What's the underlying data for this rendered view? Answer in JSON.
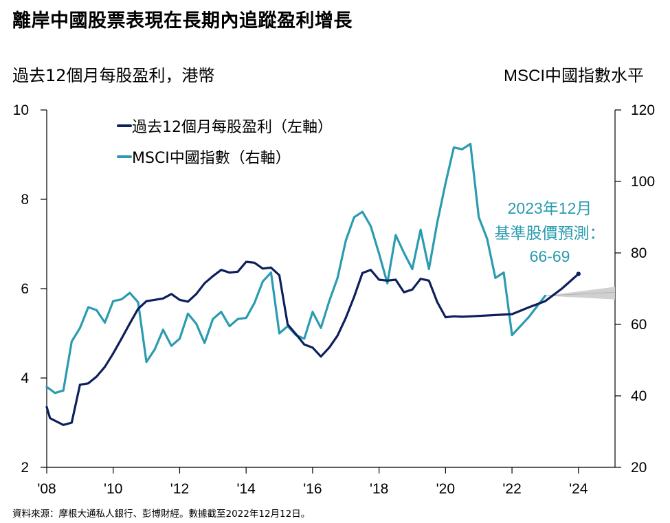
{
  "title": "離岸中國股票表現在長期內追蹤盈利增長",
  "left_axis_title": "過去12個月每股盈利，港幣",
  "right_axis_title": "MSCI中國指數水平",
  "source": "資料來源：摩根大通私人銀行、彭博財經。數據截至2022年12月12日。",
  "colors": {
    "eps": "#0d1f5c",
    "msci": "#2a9bb0",
    "forecast_band": "#d0d0d0"
  },
  "annotation": [
    "2023年12月",
    "基準股價預測：",
    "66-69"
  ],
  "chart_data": {
    "type": "line",
    "title": "離岸中國股票表現在長期內追蹤盈利增長",
    "xlabel": "",
    "x_ticks": [
      "'08",
      "'10",
      "'12",
      "'14",
      "'16",
      "'18",
      "'20",
      "'22",
      "'24"
    ],
    "x_tick_values": [
      2008,
      2010,
      2012,
      2014,
      2016,
      2018,
      2020,
      2022,
      2024
    ],
    "xlim": [
      2008,
      2025.1
    ],
    "y_left": {
      "label": "過去12個月每股盈利，港幣",
      "lim": [
        2,
        10
      ],
      "ticks": [
        "2",
        "4",
        "6",
        "8",
        "10"
      ]
    },
    "y_right": {
      "label": "MSCI中國指數水平",
      "lim": [
        20,
        120
      ],
      "ticks": [
        "20",
        "40",
        "60",
        "80",
        "100",
        "120"
      ]
    },
    "legend": {
      "placement": "top-left",
      "entries": [
        "過去12個月每股盈利（左軸）",
        "MSCI中國指數（右軸）"
      ]
    },
    "series": [
      {
        "name": "過去12個月每股盈利（左軸）",
        "axis": "left",
        "x": [
          2008.0,
          2008.1,
          2008.5,
          2008.75,
          2009.0,
          2009.25,
          2009.5,
          2009.75,
          2010.0,
          2010.25,
          2010.5,
          2010.75,
          2011.0,
          2011.25,
          2011.5,
          2011.75,
          2012.0,
          2012.25,
          2012.5,
          2012.75,
          2013.0,
          2013.25,
          2013.5,
          2013.75,
          2014.0,
          2014.25,
          2014.5,
          2014.75,
          2015.0,
          2015.25,
          2015.5,
          2015.75,
          2016.0,
          2016.25,
          2016.5,
          2016.75,
          2017.0,
          2017.25,
          2017.5,
          2017.75,
          2018.0,
          2018.25,
          2018.5,
          2018.75,
          2019.0,
          2019.25,
          2019.5,
          2019.75,
          2020.0,
          2020.25,
          2020.5,
          2020.75,
          2021.0,
          2021.5,
          2022.0,
          2022.5,
          2023.0,
          2023.5,
          2024.0
        ],
        "values": [
          3.35,
          3.1,
          2.95,
          3.0,
          3.85,
          3.88,
          4.03,
          4.25,
          4.55,
          4.88,
          5.22,
          5.55,
          5.72,
          5.75,
          5.78,
          5.88,
          5.75,
          5.71,
          5.88,
          6.12,
          6.28,
          6.42,
          6.36,
          6.38,
          6.6,
          6.58,
          6.45,
          6.47,
          6.3,
          5.2,
          4.98,
          4.75,
          4.68,
          4.48,
          4.68,
          4.95,
          5.35,
          5.82,
          6.35,
          6.42,
          6.2,
          6.18,
          6.2,
          5.92,
          5.98,
          6.22,
          6.18,
          5.7,
          5.36,
          5.38,
          5.37,
          5.38,
          5.39,
          5.41,
          5.43,
          5.58,
          5.72,
          6.0,
          6.33
        ]
      },
      {
        "name": "MSCI中國指數（右軸）",
        "axis": "right",
        "x": [
          2008.0,
          2008.25,
          2008.5,
          2008.75,
          2009.0,
          2009.25,
          2009.5,
          2009.75,
          2010.0,
          2010.25,
          2010.5,
          2010.75,
          2011.0,
          2011.25,
          2011.5,
          2011.75,
          2012.0,
          2012.25,
          2012.5,
          2012.75,
          2013.0,
          2013.25,
          2013.5,
          2013.75,
          2014.0,
          2014.25,
          2014.5,
          2014.75,
          2015.0,
          2015.25,
          2015.5,
          2015.75,
          2016.0,
          2016.25,
          2016.5,
          2016.75,
          2017.0,
          2017.25,
          2017.5,
          2017.75,
          2018.0,
          2018.25,
          2018.5,
          2018.75,
          2019.0,
          2019.25,
          2019.5,
          2019.75,
          2020.0,
          2020.25,
          2020.5,
          2020.75,
          2021.0,
          2021.25,
          2021.5,
          2021.75,
          2022.0,
          2022.5,
          2023.0
        ],
        "values": [
          42.5,
          40.8,
          41.5,
          55.2,
          59.0,
          64.8,
          64.0,
          60.5,
          66.5,
          67.0,
          68.8,
          66.2,
          49.5,
          53.0,
          58.5,
          54.0,
          56.0,
          63.0,
          60.2,
          54.8,
          61.5,
          63.5,
          59.5,
          61.5,
          61.8,
          66.0,
          72.0,
          74.5,
          57.5,
          59.5,
          57.0,
          56.0,
          63.5,
          59.0,
          66.5,
          73.0,
          83.5,
          90.0,
          91.5,
          87.5,
          79.8,
          71.5,
          85.0,
          80.0,
          75.5,
          86.5,
          75.5,
          88.5,
          99.5,
          109.5,
          109.0,
          110.5,
          90.0,
          84.0,
          73.0,
          74.5,
          57.0,
          62.0,
          68.0
        ]
      }
    ],
    "forecast_band": {
      "x": [
        2023.0,
        2025.1
      ],
      "low": [
        68.0,
        67.0
      ],
      "high": [
        68.0,
        70.5
      ],
      "mid": [
        68.0,
        69.0
      ]
    },
    "grid": false
  }
}
